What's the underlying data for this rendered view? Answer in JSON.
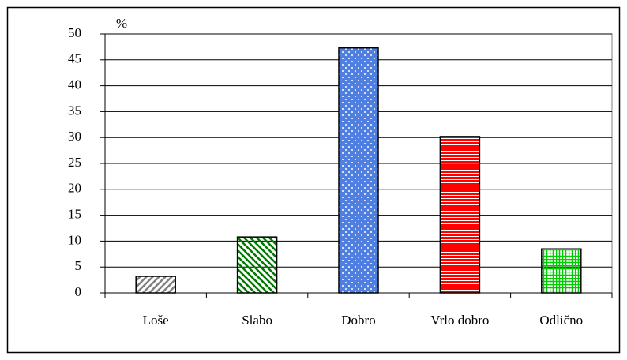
{
  "chart_data": {
    "type": "bar",
    "y_label": "%",
    "categories": [
      "Loše",
      "Slabo",
      "Dobro",
      "Vrlo dobro",
      "Odlično"
    ],
    "values": [
      3.2,
      10.8,
      47.3,
      30.2,
      8.5
    ],
    "colors": [
      "#808080",
      "#007a00",
      "#4f7fe0",
      "#ff0000",
      "#00cc00"
    ],
    "patterns": [
      "diagonal-up",
      "diagonal-down",
      "dots",
      "horizontal",
      "grid"
    ],
    "ylim": [
      0,
      50
    ],
    "yticks": [
      0,
      5,
      10,
      15,
      20,
      25,
      30,
      35,
      40,
      45,
      50
    ],
    "grid": true
  }
}
